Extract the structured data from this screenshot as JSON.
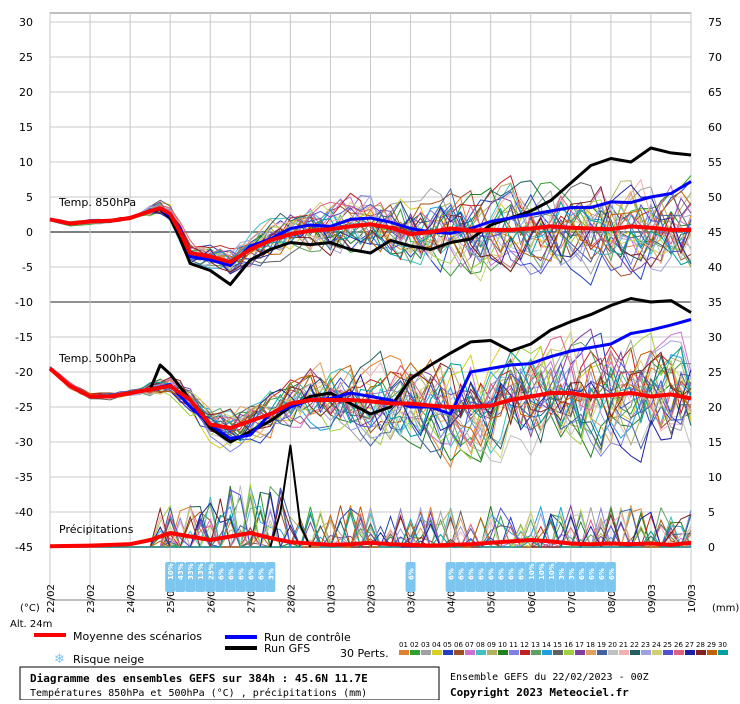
{
  "chart_data": {
    "type": "line",
    "title": "Diagramme des ensembles GEFS sur 384h : 45.6N 11.7E",
    "subtitle": "Températures 850hPa et 500hPa (°C) , précipitations (mm)",
    "run_label": "Ensemble GEFS du 22/02/2023 - 00Z",
    "copyright": "Copyright 2023 Meteociel.fr",
    "altitude": "Alt. 24m",
    "left_axis": {
      "unit": "(°C)",
      "min": -45,
      "max": 30,
      "ticks": [
        30,
        25,
        20,
        15,
        10,
        5,
        0,
        -5,
        -10,
        -15,
        -20,
        -25,
        -30,
        -35,
        -40,
        -45
      ]
    },
    "right_axis": {
      "unit": "(mm)",
      "min": 0,
      "max": 75,
      "ticks": [
        75,
        70,
        65,
        60,
        55,
        50,
        45,
        40,
        35,
        30,
        25,
        20,
        15,
        10,
        5,
        0
      ]
    },
    "x_ticks": [
      "22/02",
      "23/02",
      "24/02",
      "25/02",
      "26/02",
      "27/02",
      "28/02",
      "01/03",
      "02/03",
      "03/03",
      "04/03",
      "05/03",
      "06/03",
      "07/03",
      "08/03",
      "09/03",
      "10/03"
    ],
    "x_range_hours": [
      0,
      384
    ],
    "grid": true,
    "section_labels": {
      "t850": "Temp. 850hPa",
      "t500": "Temp. 500hPa",
      "precip": "Précipitations"
    },
    "legend": {
      "mean": "Moyenne des scénarios",
      "control": "Run de contrôle",
      "gfs": "Run GFS",
      "snow": "Risque neige",
      "perts": "30 Perts.",
      "pert_numbers": [
        "01",
        "02",
        "03",
        "04",
        "05",
        "06",
        "07",
        "08",
        "09",
        "10",
        "11",
        "12",
        "13",
        "14",
        "15",
        "16",
        "17",
        "18",
        "19",
        "20",
        "21",
        "22",
        "23",
        "24",
        "25",
        "26",
        "27",
        "28",
        "29",
        "30"
      ],
      "pert_colors": [
        "#e0802a",
        "#30a030",
        "#a0a0a0",
        "#d8d020",
        "#2040c0",
        "#a05020",
        "#d070d0",
        "#40c0c0",
        "#b0b060",
        "#208020",
        "#8080e0",
        "#c02020",
        "#60a060",
        "#20a0e0",
        "#606060",
        "#a0d040",
        "#8040a0",
        "#e0a060",
        "#4060a0",
        "#c0c0c0",
        "#f0b0b0",
        "#206060",
        "#a0a0e0",
        "#d0d070",
        "#5050d0",
        "#e06080",
        "#2020a0",
        "#802020",
        "#c06000",
        "#00a0a0"
      ]
    },
    "series_colors": {
      "mean": "#ff0000",
      "control": "#0000ff",
      "gfs": "#000000",
      "snow": "#7cc6f0"
    },
    "snow_risk": [
      {
        "h": 72,
        "pct": "10%"
      },
      {
        "h": 78,
        "pct": "43%"
      },
      {
        "h": 84,
        "pct": "33%"
      },
      {
        "h": 90,
        "pct": "13%"
      },
      {
        "h": 96,
        "pct": "23%"
      },
      {
        "h": 102,
        "pct": "6%"
      },
      {
        "h": 108,
        "pct": "6%"
      },
      {
        "h": 114,
        "pct": "6%"
      },
      {
        "h": 120,
        "pct": "6%"
      },
      {
        "h": 126,
        "pct": "6%"
      },
      {
        "h": 132,
        "pct": "3%"
      },
      {
        "h": 216,
        "pct": "6%"
      },
      {
        "h": 240,
        "pct": "6%"
      },
      {
        "h": 246,
        "pct": "6%"
      },
      {
        "h": 252,
        "pct": "6%"
      },
      {
        "h": 258,
        "pct": "6%"
      },
      {
        "h": 264,
        "pct": "6%"
      },
      {
        "h": 270,
        "pct": "6%"
      },
      {
        "h": 276,
        "pct": "6%"
      },
      {
        "h": 282,
        "pct": "6%"
      },
      {
        "h": 288,
        "pct": "10%"
      },
      {
        "h": 294,
        "pct": "10%"
      },
      {
        "h": 300,
        "pct": "10%"
      },
      {
        "h": 306,
        "pct": "3%"
      },
      {
        "h": 312,
        "pct": "3%"
      },
      {
        "h": 318,
        "pct": "6%"
      },
      {
        "h": 324,
        "pct": "6%"
      },
      {
        "h": 330,
        "pct": "6%"
      },
      {
        "h": 336,
        "pct": "6%"
      }
    ],
    "t850_mean": {
      "h": [
        0,
        12,
        24,
        36,
        48,
        60,
        66,
        72,
        78,
        84,
        96,
        108,
        120,
        132,
        144,
        156,
        168,
        180,
        192,
        204,
        216,
        228,
        240,
        252,
        264,
        276,
        288,
        300,
        312,
        324,
        336,
        348,
        360,
        372,
        384
      ],
      "y": [
        1.8,
        1.2,
        1.5,
        1.6,
        2,
        3,
        3.4,
        2.6,
        0,
        -3,
        -3.5,
        -4.3,
        -2.5,
        -1.2,
        -0.3,
        0.2,
        0.4,
        0.8,
        1.1,
        0.6,
        -0.3,
        0,
        0.5,
        0.2,
        0.3,
        0.3,
        0.5,
        0.8,
        0.6,
        0.5,
        0.4,
        0.8,
        0.6,
        0.3,
        0.3
      ]
    },
    "t850_control": {
      "h": [
        0,
        12,
        24,
        36,
        48,
        60,
        66,
        72,
        78,
        84,
        96,
        108,
        120,
        132,
        144,
        156,
        168,
        180,
        192,
        204,
        216,
        228,
        240,
        252,
        264,
        276,
        288,
        300,
        312,
        324,
        336,
        348,
        360,
        372,
        384
      ],
      "y": [
        1.8,
        1.2,
        1.5,
        1.6,
        2,
        3,
        3.3,
        2.3,
        0.5,
        -3.5,
        -4,
        -4.8,
        -2,
        -1,
        0.5,
        1,
        0.8,
        1.8,
        2,
        1.4,
        0.5,
        0,
        -0.2,
        0.5,
        1.5,
        2,
        2.5,
        3,
        3.5,
        3.5,
        4.3,
        4.2,
        5,
        5.5,
        7.2
      ]
    },
    "t850_gfs": {
      "h": [
        0,
        12,
        24,
        36,
        48,
        60,
        66,
        72,
        78,
        84,
        96,
        108,
        120,
        132,
        144,
        156,
        168,
        180,
        192,
        204,
        216,
        228,
        240,
        252,
        264,
        276,
        288,
        300,
        312,
        324,
        336,
        348,
        360,
        372,
        384
      ],
      "y": [
        1.8,
        1.2,
        1.5,
        1.6,
        2,
        3,
        3.2,
        2,
        -1,
        -4.5,
        -5.5,
        -7.5,
        -4,
        -2.5,
        -1.5,
        -1.8,
        -1.5,
        -2.5,
        -3,
        -1.2,
        -2,
        -2.5,
        -1.5,
        -1,
        1,
        2,
        3,
        4.5,
        7,
        9.5,
        10.5,
        10,
        12,
        11.3,
        11
      ]
    },
    "t500_mean": {
      "h": [
        0,
        12,
        24,
        36,
        48,
        60,
        72,
        84,
        96,
        108,
        120,
        132,
        144,
        156,
        168,
        180,
        192,
        204,
        216,
        228,
        240,
        252,
        264,
        276,
        288,
        300,
        312,
        324,
        336,
        348,
        360,
        372,
        384
      ],
      "y": [
        -19.5,
        -22,
        -23.5,
        -23.5,
        -23,
        -22.5,
        -22,
        -24,
        -27.5,
        -28,
        -27,
        -26,
        -24.5,
        -24,
        -24,
        -24,
        -24.2,
        -24.5,
        -24.5,
        -24.8,
        -25,
        -25,
        -24.8,
        -24,
        -23.5,
        -23,
        -23,
        -23.5,
        -23.3,
        -23,
        -23.5,
        -23.2,
        -23.8
      ]
    },
    "t500_control": {
      "h": [
        0,
        12,
        24,
        36,
        48,
        60,
        72,
        84,
        96,
        108,
        120,
        132,
        144,
        156,
        168,
        180,
        192,
        204,
        216,
        228,
        240,
        252,
        264,
        276,
        288,
        300,
        312,
        324,
        336,
        348,
        360,
        372,
        384
      ],
      "y": [
        -19.5,
        -22,
        -23.5,
        -23.5,
        -23,
        -22.5,
        -21.8,
        -25,
        -27.5,
        -29.5,
        -29,
        -26,
        -25,
        -24,
        -23.8,
        -23,
        -23.5,
        -24,
        -25,
        -25,
        -26,
        -20,
        -19.5,
        -19,
        -18.8,
        -17.8,
        -17,
        -16.5,
        -16,
        -14.5,
        -14,
        -13.3,
        -12.5
      ]
    },
    "t500_gfs": {
      "h": [
        0,
        12,
        24,
        36,
        48,
        60,
        66,
        72,
        84,
        96,
        108,
        120,
        132,
        144,
        156,
        168,
        180,
        192,
        204,
        216,
        228,
        240,
        252,
        264,
        276,
        288,
        300,
        312,
        324,
        336,
        348,
        360,
        372,
        384
      ],
      "y": [
        -19.5,
        -22,
        -23.5,
        -23.5,
        -23,
        -22.5,
        -19,
        -20.3,
        -24,
        -28,
        -30,
        -28.5,
        -27,
        -25,
        -23.5,
        -23,
        -24.5,
        -26,
        -25,
        -21,
        -19,
        -17.3,
        -15.7,
        -15.5,
        -17,
        -16,
        -14,
        -12.8,
        -11.8,
        -10.5,
        -9.5,
        -10,
        -9.8,
        -11.5
      ]
    },
    "precip_mean": {
      "h": [
        0,
        24,
        48,
        60,
        72,
        84,
        96,
        108,
        120,
        132,
        144,
        156,
        168,
        180,
        192,
        204,
        216,
        228,
        240,
        252,
        264,
        276,
        288,
        300,
        312,
        324,
        336,
        348,
        360,
        372,
        384
      ],
      "y": [
        0.1,
        0.2,
        0.4,
        1,
        2,
        1.5,
        1,
        1.5,
        2,
        1.3,
        0.7,
        0.5,
        0.3,
        0.4,
        0.6,
        0.4,
        0.3,
        0.2,
        0.3,
        0.4,
        0.6,
        0.8,
        1,
        0.8,
        0.5,
        0.4,
        0.5,
        0.4,
        0.5,
        0.3,
        0.6
      ]
    },
    "precip_gfs_peak": {
      "h": [
        132,
        138,
        144,
        150,
        156
      ],
      "y": [
        0,
        5,
        14.5,
        3,
        0
      ]
    }
  }
}
